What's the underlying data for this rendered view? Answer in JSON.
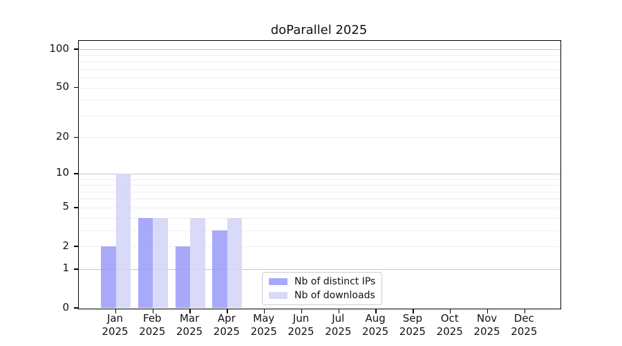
{
  "chart_data": {
    "type": "bar",
    "title": "doParallel 2025",
    "categories": [
      "Jan",
      "Feb",
      "Mar",
      "Apr",
      "May",
      "Jun",
      "Jul",
      "Aug",
      "Sep",
      "Oct",
      "Nov",
      "Dec"
    ],
    "year_label": "2025",
    "series": [
      {
        "name": "Nb of distinct IPs",
        "color": "#a9a9fa",
        "values": [
          2,
          4,
          2,
          3,
          0,
          0,
          0,
          0,
          0,
          0,
          0,
          0
        ]
      },
      {
        "name": "Nb of downloads",
        "color": "#d9d9f8",
        "values": [
          10,
          4,
          4,
          4,
          0,
          0,
          0,
          0,
          0,
          0,
          0,
          0
        ]
      }
    ],
    "y_axis": {
      "scale": "log10(1+x)",
      "ticks": [
        0,
        1,
        2,
        5,
        10,
        20,
        50,
        100
      ],
      "major_gridlines": [
        1,
        10,
        100
      ],
      "minor_gridlines": [
        2,
        3,
        4,
        5,
        6,
        7,
        8,
        9,
        20,
        30,
        40,
        50,
        60,
        70,
        80,
        90
      ],
      "ylim_top": 116
    },
    "legend": {
      "position": "lower-center-inside"
    },
    "colors": {
      "major_grid": "#c6c6c6",
      "minor_grid": "#ededed",
      "spine": "#000000",
      "background": "#ffffff"
    },
    "grid": true
  }
}
